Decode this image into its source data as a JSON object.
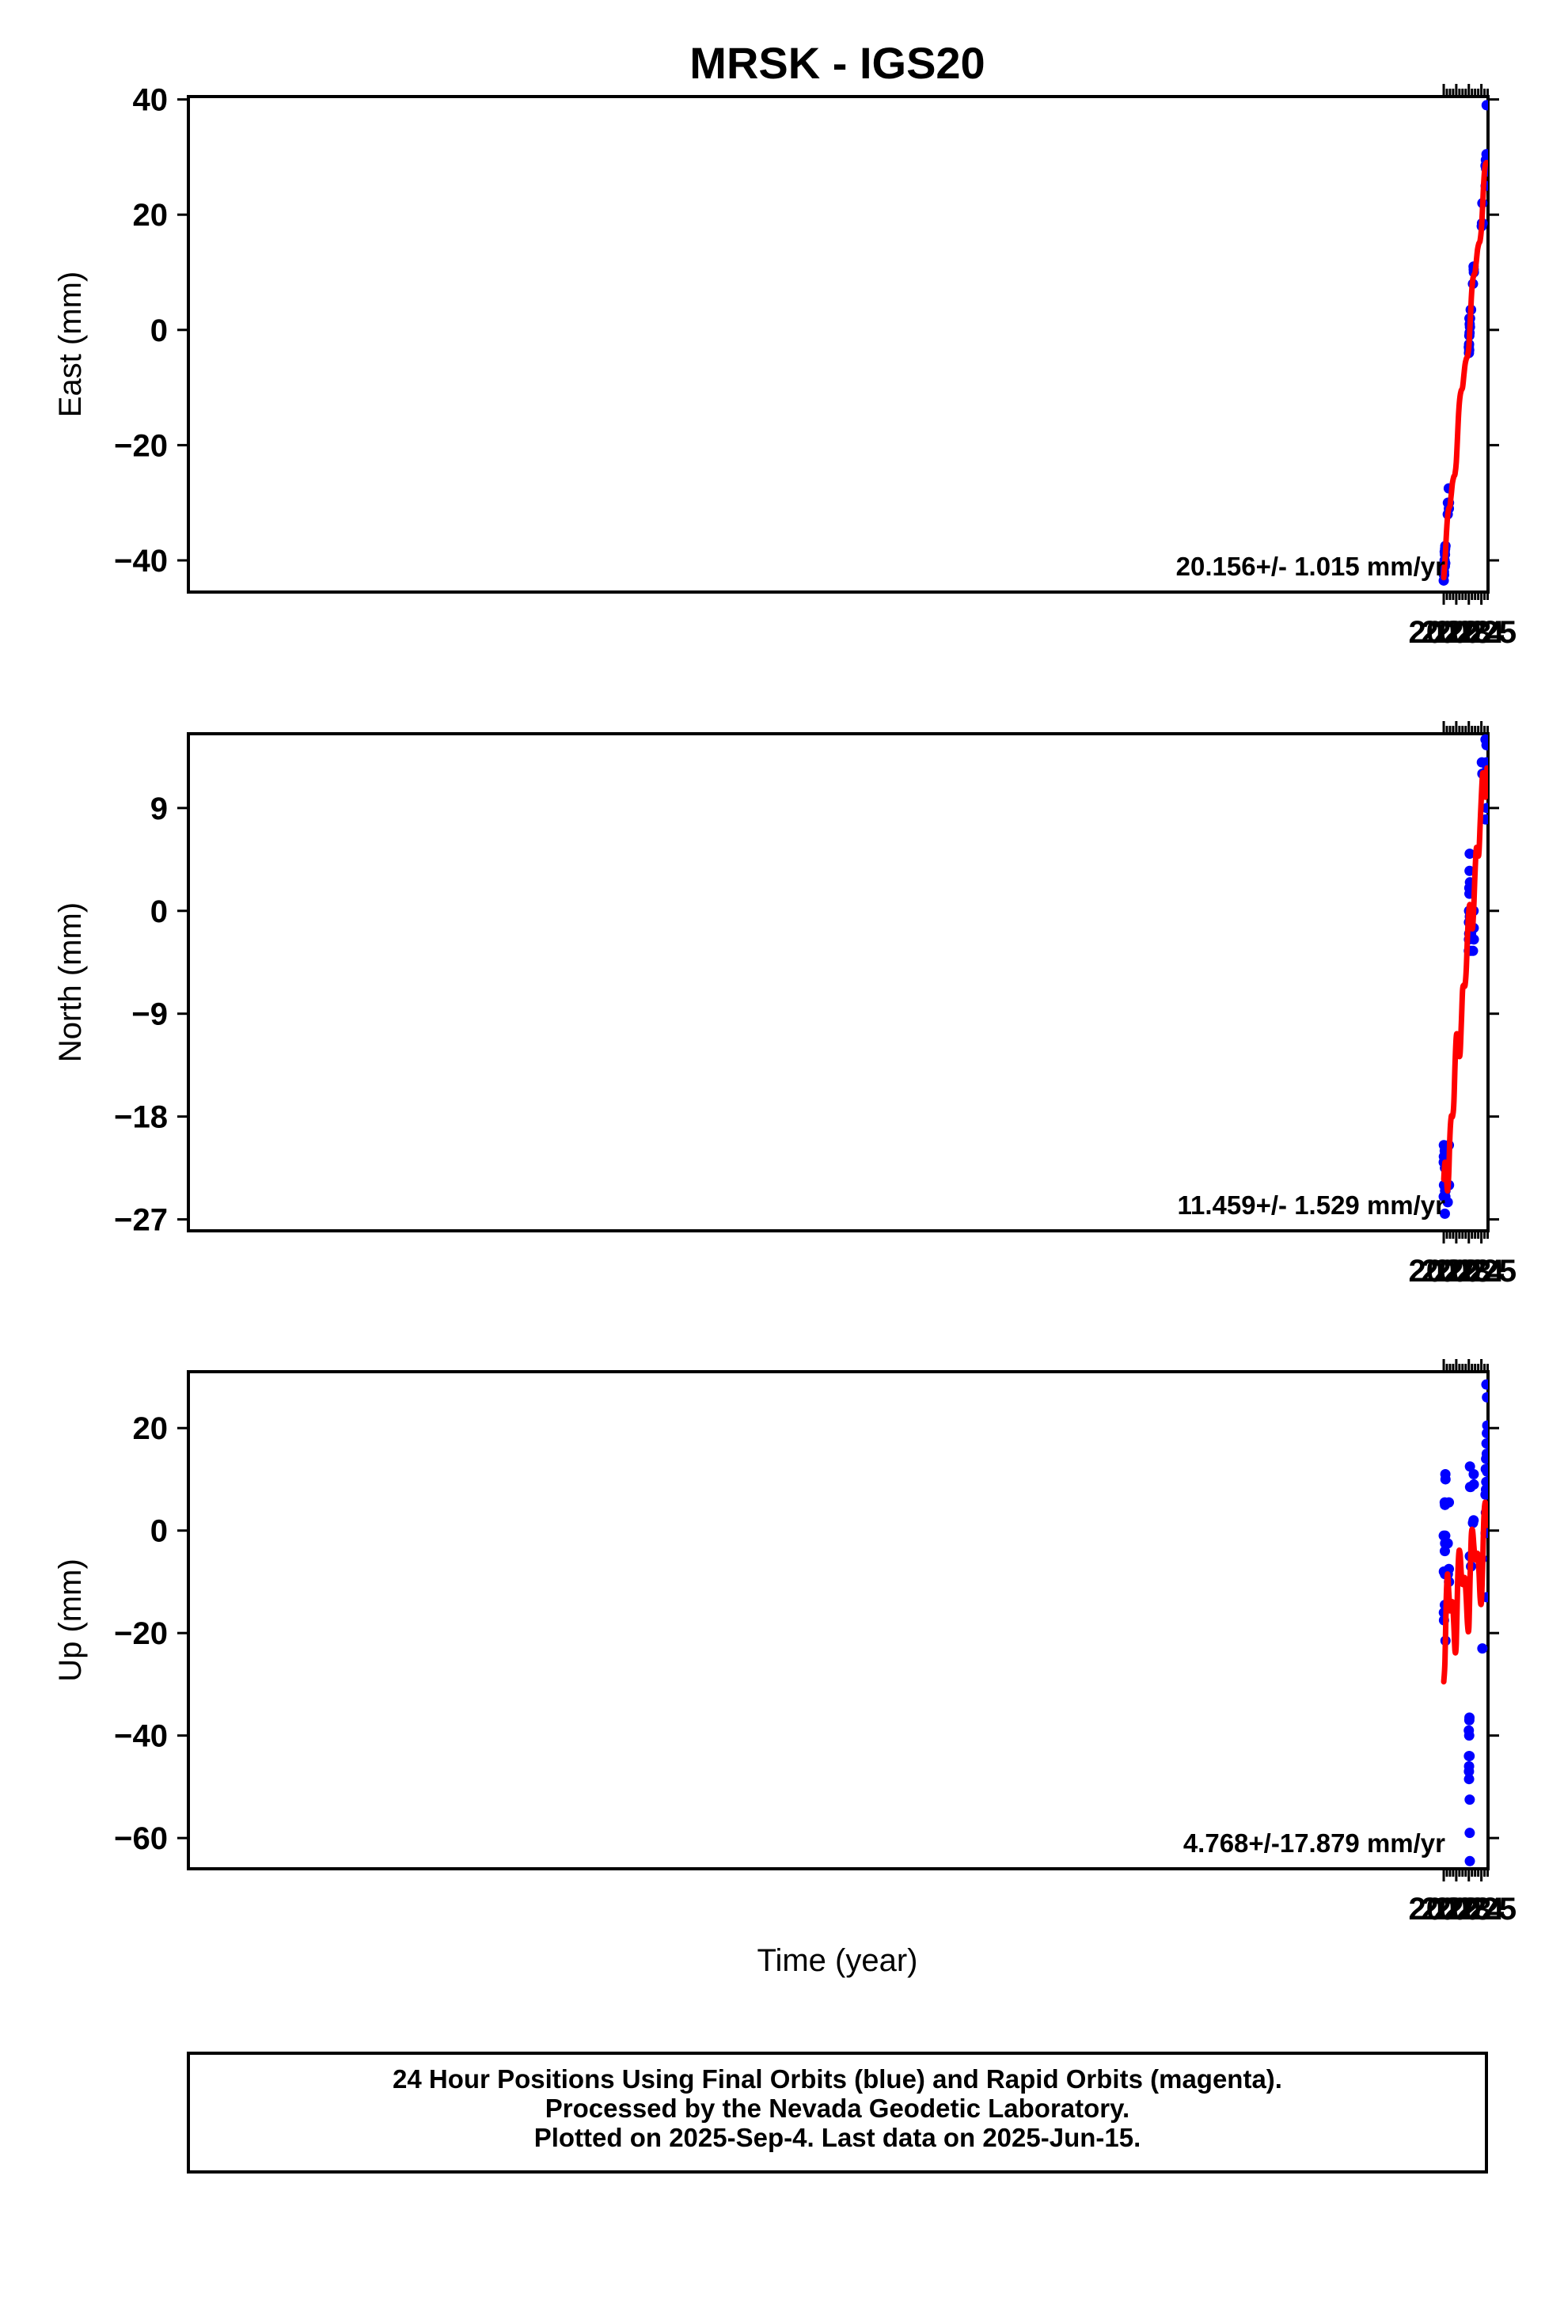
{
  "title": "MRSK - IGS20",
  "xlabel": "Time (year)",
  "footer": {
    "lines": [
      "24 Hour Positions Using Final Orbits (blue) and Rapid Orbits (magenta).",
      "Processed by the Nevada Geodetic Laboratory.",
      "Plotted on 2025-Sep-4. Last data on 2025-Jun-15."
    ]
  },
  "colors": {
    "points": "#0000ff",
    "model": "#ff0000",
    "axis": "#000000"
  },
  "chart_data": [
    {
      "type": "scatter",
      "ylabel": "East (mm)",
      "rate": "20.156+/- 1.015 mm/yr",
      "xlim": [
        1921.93,
        2025.53
      ],
      "ylim": [
        -45.5,
        40.5
      ],
      "xticks": [
        2022,
        2023,
        2024,
        2025
      ],
      "yticks": [
        -40,
        -20,
        0,
        20,
        40
      ],
      "yticklabels": [
        "−40",
        "−20",
        "0",
        "20",
        "40"
      ],
      "series": [
        {
          "kind": "points",
          "x": [
            2022.0,
            2022.01,
            2022.02,
            2022.03,
            2022.05,
            2022.07,
            2022.08,
            2022.09,
            2022.1,
            2022.11,
            2022.12,
            2022.13,
            2022.14,
            2022.32,
            2022.33,
            2022.4,
            2022.41,
            2022.42,
            2024.0,
            2024.01,
            2024.02,
            2024.03,
            2024.04,
            2024.05,
            2024.06,
            2024.07,
            2024.08,
            2024.09,
            2024.1,
            2024.15,
            2024.18,
            2024.33,
            2024.38,
            2024.39,
            2024.4,
            2025.03,
            2025.05,
            2025.08,
            2025.1,
            2025.33,
            2025.34,
            2025.36,
            2025.38,
            2025.4,
            2025.41,
            2025.42,
            2025.43,
            2025.44,
            2025.45,
            2025.46,
            2025.47
          ],
          "y": [
            -43.5,
            -42.5,
            -42.0,
            -42.5,
            -41.0,
            -40.0,
            -38.5,
            -41.0,
            -39.0,
            -38.0,
            -40.5,
            -37.5,
            -37.5,
            -32.0,
            -30.0,
            -27.5,
            -31.0,
            -30.0,
            -3.0,
            -4.0,
            -2.5,
            -3.5,
            -1.0,
            2.0,
            -0.5,
            1.0,
            2.0,
            0.5,
            2.0,
            3.5,
            3.5,
            8.0,
            11.0,
            10.5,
            10.0,
            18.0,
            18.5,
            22.0,
            18.5,
            28.5,
            25.0,
            29.5,
            28.0,
            29.0,
            30.5,
            39.0,
            28.0,
            29.0,
            27.5,
            28.5,
            29.5
          ]
        },
        {
          "kind": "line",
          "x": [
            2022.0,
            2022.1,
            2022.2,
            2022.3,
            2022.4,
            2022.5,
            2022.6,
            2022.7,
            2022.8,
            2022.9,
            2023.0,
            2023.1,
            2023.2,
            2023.3,
            2023.4,
            2023.5,
            2023.6,
            2023.7,
            2023.8,
            2023.9,
            2024.0,
            2024.1,
            2024.2,
            2024.3,
            2024.4,
            2024.5,
            2024.6,
            2024.7,
            2024.8,
            2024.9,
            2025.0,
            2025.1,
            2025.2,
            2025.3,
            2025.4,
            2025.45
          ],
          "y": [
            -43.0,
            -40.0,
            -36.0,
            -32.5,
            -31.0,
            -30.5,
            -28.5,
            -26.5,
            -25.5,
            -25.0,
            -23.0,
            -18.5,
            -14.0,
            -11.5,
            -10.5,
            -10.0,
            -8.0,
            -6.0,
            -5.0,
            -4.5,
            -3.0,
            1.0,
            5.5,
            8.5,
            9.5,
            10.0,
            12.0,
            14.0,
            15.0,
            15.5,
            17.5,
            21.5,
            26.0,
            28.5,
            29.0,
            29.0
          ]
        }
      ]
    },
    {
      "type": "scatter",
      "ylabel": "North (mm)",
      "rate": "11.459+/- 1.529 mm/yr",
      "xlim": [
        1921.93,
        2025.53
      ],
      "ylim": [
        -28.0,
        15.5
      ],
      "xticks": [
        2022,
        2023,
        2024,
        2025
      ],
      "yticks": [
        -27,
        -18,
        -9,
        0,
        9
      ],
      "yticklabels": [
        "−27",
        "−18",
        "−9",
        "0",
        "9"
      ],
      "series": [
        {
          "kind": "points",
          "x": [
            2022.0,
            2022.0,
            2022.01,
            2022.01,
            2022.02,
            2022.08,
            2022.09,
            2022.09,
            2022.1,
            2022.1,
            2022.11,
            2022.12,
            2022.13,
            2022.14,
            2022.14,
            2022.32,
            2022.33,
            2022.41,
            2022.41,
            2022.42,
            2024.0,
            2024.01,
            2024.01,
            2024.02,
            2024.03,
            2024.04,
            2024.05,
            2024.06,
            2024.07,
            2024.08,
            2024.09,
            2024.1,
            2024.16,
            2024.18,
            2024.33,
            2024.38,
            2024.39,
            2024.4,
            2025.04,
            2025.08,
            2025.33,
            2025.34,
            2025.35,
            2025.36,
            2025.38,
            2025.39,
            2025.4,
            2025.41,
            2025.42,
            2025.43,
            2025.44,
            2025.45,
            2025.46,
            2025.47
          ],
          "y": [
            -25.0,
            -22.0,
            -20.5,
            -21.5,
            -24.0,
            -21.0,
            -24.0,
            -26.5,
            -25.0,
            -22.5,
            -24.5,
            -21.5,
            -25.0,
            -22.0,
            -24.5,
            -25.5,
            -24.0,
            -20.5,
            -24.0,
            -24.0,
            -3.5,
            -1.0,
            -2.5,
            0.0,
            -2.0,
            2.0,
            1.5,
            3.5,
            5.0,
            -0.5,
            2.5,
            -1.0,
            -3.5,
            -2.0,
            -3.5,
            0.0,
            -1.5,
            -2.5,
            13.0,
            12.0,
            15.0,
            8.0,
            11.0,
            12.0,
            11.0,
            13.0,
            10.5,
            14.5,
            11.5,
            9.0,
            14.5,
            12.0,
            11.0,
            12.5
          ]
        },
        {
          "kind": "line",
          "x": [
            2022.0,
            2022.1,
            2022.2,
            2022.3,
            2022.4,
            2022.5,
            2022.6,
            2022.7,
            2022.8,
            2022.9,
            2023.0,
            2023.1,
            2023.2,
            2023.3,
            2023.4,
            2023.5,
            2023.6,
            2023.7,
            2023.8,
            2023.9,
            2024.0,
            2024.1,
            2024.2,
            2024.3,
            2024.4,
            2024.5,
            2024.6,
            2024.7,
            2024.8,
            2024.9,
            2025.0,
            2025.1,
            2025.2,
            2025.3,
            2025.4,
            2025.45
          ],
          "y": [
            -23.5,
            -22.0,
            -23.0,
            -24.5,
            -23.0,
            -19.5,
            -18.0,
            -18.0,
            -17.0,
            -13.5,
            -11.0,
            -11.0,
            -12.5,
            -12.5,
            -10.0,
            -7.0,
            -6.5,
            -6.5,
            -5.0,
            -2.0,
            0.0,
            0.5,
            -1.0,
            -1.5,
            0.5,
            3.5,
            5.5,
            5.0,
            5.0,
            7.5,
            10.0,
            12.0,
            11.5,
            10.0,
            10.5,
            12.5
          ]
        }
      ]
    },
    {
      "type": "scatter",
      "ylabel": "Up (mm)",
      "rate": "4.768+/-17.879 mm/yr",
      "xlim": [
        1921.93,
        2025.53
      ],
      "ylim": [
        -66.0,
        31.0
      ],
      "xticks": [
        2022,
        2023,
        2024,
        2025
      ],
      "yticks": [
        -60,
        -40,
        -20,
        0,
        20
      ],
      "yticklabels": [
        "−60",
        "−40",
        "−20",
        "0",
        "20"
      ],
      "series": [
        {
          "kind": "points",
          "x": [
            2022.0,
            2022.01,
            2022.01,
            2022.02,
            2022.08,
            2022.09,
            2022.09,
            2022.1,
            2022.1,
            2022.11,
            2022.12,
            2022.13,
            2022.13,
            2022.14,
            2022.14,
            2022.32,
            2022.33,
            2022.41,
            2022.41,
            2022.42,
            2024.0,
            2024.01,
            2024.01,
            2024.02,
            2024.02,
            2024.03,
            2024.04,
            2024.05,
            2024.06,
            2024.07,
            2024.07,
            2024.08,
            2024.08,
            2024.09,
            2024.1,
            2024.15,
            2024.18,
            2024.33,
            2024.38,
            2024.39,
            2024.4,
            2025.04,
            2025.08,
            2025.33,
            2025.34,
            2025.35,
            2025.36,
            2025.37,
            2025.38,
            2025.39,
            2025.4,
            2025.41,
            2025.42,
            2025.43,
            2025.44,
            2025.45,
            2025.46,
            2025.47
          ],
          "y": [
            -1.0,
            -16.0,
            -8.0,
            -17.5,
            5.5,
            -14.5,
            -4.0,
            5.0,
            -8.5,
            -2.5,
            -1.0,
            11.0,
            -8.0,
            10.0,
            -21.5,
            -2.5,
            -8.5,
            5.5,
            -7.5,
            -10.0,
            -39.0,
            -44.0,
            -47.0,
            -46.0,
            -48.5,
            -40.0,
            -37.0,
            -36.5,
            -44.0,
            -52.5,
            -59.0,
            -64.5,
            -5.0,
            12.5,
            8.5,
            8.5,
            -7.0,
            1.5,
            2.0,
            11.0,
            9.0,
            -5.5,
            -23.0,
            7.0,
            -0.5,
            12.0,
            3.5,
            8.0,
            14.0,
            9.5,
            28.5,
            17.0,
            -13.0,
            15.0,
            19.0,
            26.0,
            11.5,
            20.5
          ]
        },
        {
          "kind": "line",
          "x": [
            2022.0,
            2022.1,
            2022.2,
            2022.3,
            2022.4,
            2022.5,
            2022.6,
            2022.7,
            2022.8,
            2022.9,
            2023.0,
            2023.1,
            2023.2,
            2023.3,
            2023.4,
            2023.5,
            2023.6,
            2023.7,
            2023.8,
            2023.9,
            2024.0,
            2024.1,
            2024.2,
            2024.3,
            2024.4,
            2024.5,
            2024.6,
            2024.7,
            2024.8,
            2024.9,
            2025.0,
            2025.1,
            2025.2,
            2025.3,
            2025.4,
            2025.45
          ],
          "y": [
            -29.5,
            -25.5,
            -13.5,
            -8.5,
            -12.0,
            -15.5,
            -15.0,
            -14.0,
            -18.0,
            -23.5,
            -22.0,
            -11.0,
            -4.5,
            -4.5,
            -8.5,
            -10.5,
            -9.5,
            -9.5,
            -13.5,
            -18.5,
            -19.0,
            -9.5,
            -1.0,
            0.0,
            -3.0,
            -5.5,
            -5.5,
            -4.5,
            -7.5,
            -13.0,
            -14.0,
            -7.0,
            2.5,
            5.5,
            3.5,
            1.0
          ]
        }
      ]
    }
  ]
}
